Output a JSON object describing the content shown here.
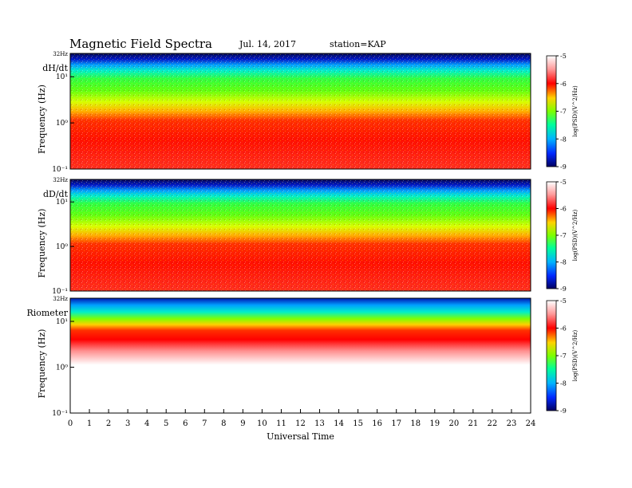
{
  "header": {
    "title": "Magnetic Field Spectra",
    "date": "Jul. 14, 2017",
    "station": "station=KAP"
  },
  "chart_data": {
    "type": "heatmap",
    "xlabel": "Universal Time",
    "x_ticks": [
      "0",
      "1",
      "2",
      "3",
      "4",
      "5",
      "6",
      "7",
      "8",
      "9",
      "10",
      "11",
      "12",
      "13",
      "14",
      "15",
      "16",
      "17",
      "18",
      "19",
      "20",
      "21",
      "22",
      "23",
      "24"
    ],
    "xlim": [
      0,
      24
    ],
    "y_scale": "log",
    "colorbar": {
      "label": "log(PSD)(V^2/Hz)",
      "ticks": [
        "-5",
        "-6",
        "-7",
        "-8",
        "-9"
      ],
      "range": [
        -9,
        -5
      ]
    },
    "panels": [
      {
        "label": "dH/dt",
        "ylabel": "Frequency (Hz)",
        "y_ticks": [
          "32Hz",
          "10¹",
          "10⁰",
          "10⁻¹"
        ]
      },
      {
        "label": "dD/dt",
        "ylabel": "Frequency (Hz)",
        "y_ticks": [
          "32Hz",
          "10¹",
          "10⁰",
          "10⁻¹"
        ]
      },
      {
        "label": "Riometer",
        "ylabel": "Frequency (Hz)",
        "y_ticks": [
          "32Hz",
          "10¹",
          "10⁰",
          "10⁻¹"
        ]
      }
    ]
  }
}
